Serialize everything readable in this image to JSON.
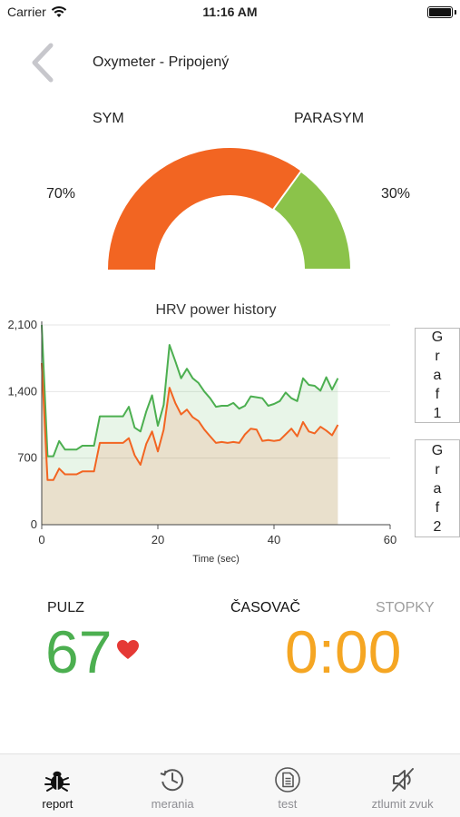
{
  "status_bar": {
    "carrier": "Carrier",
    "time": "11:16 AM"
  },
  "nav": {
    "title": "Oxymeter - Pripojený"
  },
  "gauge": {
    "left_label": "SYM",
    "right_label": "PARASYM",
    "left_percent": "70%",
    "right_percent": "30%",
    "left_value": 70,
    "right_value": 30,
    "left_color": "#f26522",
    "right_color": "#8bc34a"
  },
  "chart_data": {
    "type": "area",
    "title": "HRV power history",
    "xlabel": "Time (sec)",
    "ylabel": "",
    "xlim": [
      0,
      60
    ],
    "ylim": [
      0,
      2100
    ],
    "x_ticks": [
      "0",
      "20",
      "40",
      "60"
    ],
    "y_ticks": [
      "0",
      "700",
      "1,400",
      "2,100"
    ],
    "grid": true,
    "series": [
      {
        "color": "#4caf50",
        "points": [
          [
            0,
            2100
          ],
          [
            1,
            720
          ],
          [
            2,
            720
          ],
          [
            3,
            880
          ],
          [
            4,
            790
          ],
          [
            5,
            790
          ],
          [
            6,
            790
          ],
          [
            7,
            830
          ],
          [
            8,
            830
          ],
          [
            9,
            830
          ],
          [
            10,
            1140
          ],
          [
            11,
            1140
          ],
          [
            12,
            1140
          ],
          [
            13,
            1140
          ],
          [
            14,
            1140
          ],
          [
            15,
            1240
          ],
          [
            16,
            1020
          ],
          [
            17,
            980
          ],
          [
            18,
            1190
          ],
          [
            19,
            1360
          ],
          [
            20,
            1040
          ],
          [
            21,
            1260
          ],
          [
            22,
            1890
          ],
          [
            23,
            1720
          ],
          [
            24,
            1540
          ],
          [
            25,
            1640
          ],
          [
            26,
            1540
          ],
          [
            27,
            1490
          ],
          [
            28,
            1400
          ],
          [
            29,
            1330
          ],
          [
            30,
            1240
          ],
          [
            31,
            1250
          ],
          [
            32,
            1250
          ],
          [
            33,
            1280
          ],
          [
            34,
            1220
          ],
          [
            35,
            1250
          ],
          [
            36,
            1350
          ],
          [
            37,
            1340
          ],
          [
            38,
            1330
          ],
          [
            39,
            1250
          ],
          [
            40,
            1270
          ],
          [
            41,
            1300
          ],
          [
            42,
            1390
          ],
          [
            43,
            1330
          ],
          [
            44,
            1300
          ],
          [
            45,
            1540
          ],
          [
            46,
            1470
          ],
          [
            47,
            1460
          ],
          [
            48,
            1410
          ],
          [
            49,
            1550
          ],
          [
            50,
            1420
          ],
          [
            51,
            1540
          ]
        ]
      },
      {
        "color": "#f26522",
        "points": [
          [
            0,
            1700
          ],
          [
            1,
            470
          ],
          [
            2,
            470
          ],
          [
            3,
            590
          ],
          [
            4,
            530
          ],
          [
            5,
            530
          ],
          [
            6,
            530
          ],
          [
            7,
            560
          ],
          [
            8,
            560
          ],
          [
            9,
            560
          ],
          [
            10,
            860
          ],
          [
            11,
            860
          ],
          [
            12,
            860
          ],
          [
            13,
            860
          ],
          [
            14,
            860
          ],
          [
            15,
            910
          ],
          [
            16,
            730
          ],
          [
            17,
            630
          ],
          [
            18,
            850
          ],
          [
            19,
            980
          ],
          [
            20,
            770
          ],
          [
            21,
            1000
          ],
          [
            22,
            1440
          ],
          [
            23,
            1280
          ],
          [
            24,
            1160
          ],
          [
            25,
            1210
          ],
          [
            26,
            1130
          ],
          [
            27,
            1090
          ],
          [
            28,
            1000
          ],
          [
            29,
            930
          ],
          [
            30,
            860
          ],
          [
            31,
            870
          ],
          [
            32,
            860
          ],
          [
            33,
            870
          ],
          [
            34,
            860
          ],
          [
            35,
            950
          ],
          [
            36,
            1010
          ],
          [
            37,
            1000
          ],
          [
            38,
            880
          ],
          [
            39,
            890
          ],
          [
            40,
            880
          ],
          [
            41,
            890
          ],
          [
            42,
            950
          ],
          [
            43,
            1010
          ],
          [
            44,
            930
          ],
          [
            45,
            1080
          ],
          [
            46,
            980
          ],
          [
            47,
            960
          ],
          [
            48,
            1030
          ],
          [
            49,
            990
          ],
          [
            50,
            940
          ],
          [
            51,
            1050
          ]
        ]
      }
    ]
  },
  "graph_buttons": [
    {
      "letters": [
        "G",
        "r",
        "a",
        "f",
        "1"
      ]
    },
    {
      "letters": [
        "G",
        "r",
        "a",
        "f",
        "2"
      ]
    }
  ],
  "pulse": {
    "label": "PULZ",
    "value": "67"
  },
  "timer": {
    "tab_timer": "ČASOVAČ",
    "tab_stopwatch": "STOPKY",
    "value": "0:00"
  },
  "tab_bar": {
    "items": [
      {
        "label": "report",
        "icon": "bug-icon"
      },
      {
        "label": "merania",
        "icon": "history-icon"
      },
      {
        "label": "test",
        "icon": "document-icon"
      },
      {
        "label": "ztlumit zvuk",
        "icon": "mute-icon"
      }
    ]
  }
}
